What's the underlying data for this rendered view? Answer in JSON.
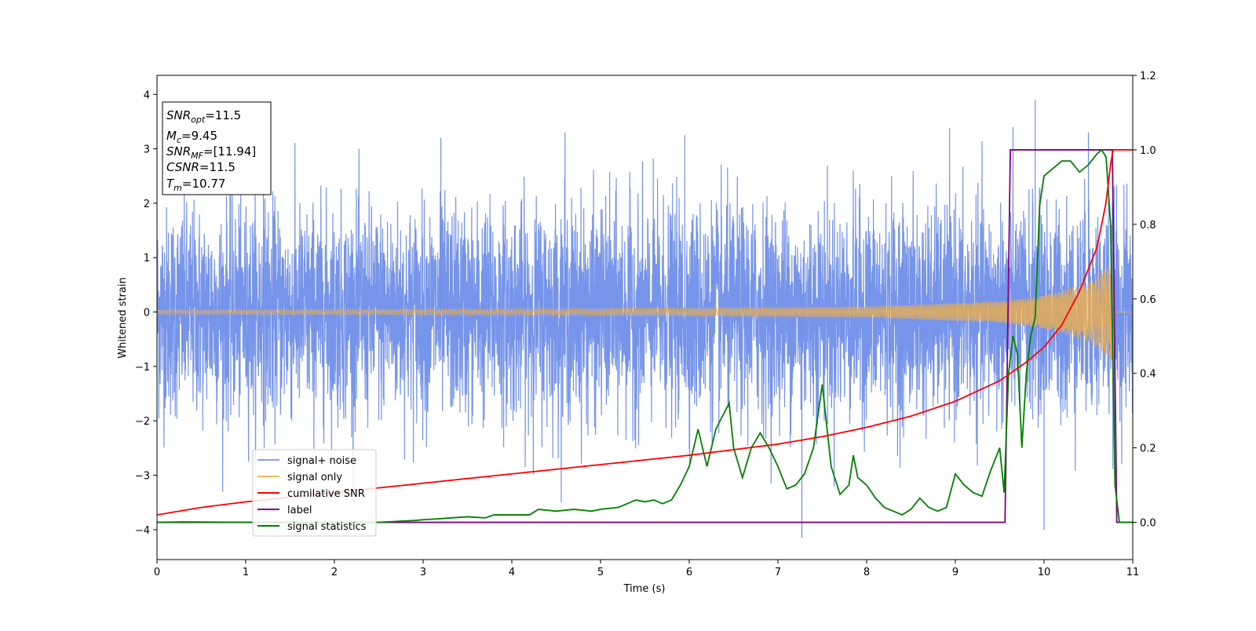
{
  "chart_data": {
    "type": "line",
    "xlabel": "Time (s)",
    "ylabel": "Whitened strain",
    "xlim": [
      0,
      11
    ],
    "ylim_left": [
      -4.55,
      4.35
    ],
    "ylim_right": [
      -0.1,
      1.2
    ],
    "x_ticks": [
      0,
      1,
      2,
      3,
      4,
      5,
      6,
      7,
      8,
      9,
      10,
      11
    ],
    "y_ticks_left": [
      -4,
      -3,
      -2,
      -1,
      0,
      1,
      2,
      3,
      4
    ],
    "y_ticks_right": [
      0.0,
      0.2,
      0.4,
      0.6,
      0.8,
      1.0,
      1.2
    ],
    "grid": false,
    "legend_position": "lower-left",
    "annotation": {
      "lines": [
        {
          "sym": "SNR",
          "sub": "opt",
          "val": "=11.5"
        },
        {
          "sym": "M",
          "sub": "c",
          "val": "=9.45"
        },
        {
          "sym": "SNR",
          "sub": "MF",
          "val": "=[11.94]"
        },
        {
          "sym": "CSNR",
          "sub": "",
          "val": "=11.5"
        },
        {
          "sym": "T",
          "sub": "m",
          "val": "=10.77"
        }
      ]
    },
    "series": [
      {
        "name": "signal+ noise",
        "axis": "left",
        "color": "#6f8ee8",
        "style": "noise",
        "sigma": 1.0,
        "x_range": [
          0,
          11
        ],
        "peaks_x": [
          1.2,
          3.2,
          4.6,
          5.95,
          9.9,
          10.0,
          10.5
        ],
        "peaks_y": [
          3.4,
          3.2,
          3.3,
          3.25,
          3.9,
          -4.0,
          3.3
        ],
        "min_point": [
          7.27,
          -4.15
        ]
      },
      {
        "name": "signal only",
        "axis": "left",
        "color": "#f5b041",
        "style": "chirp",
        "t_merger": 10.77,
        "x_range": [
          0,
          11
        ],
        "amp_points_x": [
          0,
          5,
          8,
          9.5,
          10.0,
          10.5,
          10.77,
          10.8,
          11
        ],
        "amp_points_y": [
          0.04,
          0.06,
          0.1,
          0.2,
          0.3,
          0.55,
          0.9,
          0.0,
          0.0
        ]
      },
      {
        "name": "cumilative SNR",
        "axis": "right",
        "color": "#ff0000",
        "x": [
          0,
          0.5,
          1,
          2,
          3,
          4,
          5,
          6,
          6.5,
          7,
          7.5,
          8,
          8.5,
          9,
          9.5,
          9.8,
          10.0,
          10.2,
          10.4,
          10.6,
          10.7,
          10.77,
          10.8,
          11
        ],
        "y": [
          0.02,
          0.04,
          0.055,
          0.08,
          0.105,
          0.13,
          0.155,
          0.18,
          0.195,
          0.21,
          0.23,
          0.255,
          0.285,
          0.325,
          0.38,
          0.43,
          0.47,
          0.53,
          0.62,
          0.74,
          0.86,
          1.0,
          1.0,
          1.0
        ]
      },
      {
        "name": "label",
        "axis": "right",
        "color": "#800080",
        "x": [
          0,
          9.56,
          9.62,
          10.77,
          10.82,
          11
        ],
        "y": [
          0,
          0,
          1,
          1,
          0,
          0
        ]
      },
      {
        "name": "signal statistics",
        "axis": "right",
        "color": "#008000",
        "x": [
          0,
          0.3,
          1,
          2,
          2.5,
          2.9,
          3.0,
          3.2,
          3.5,
          3.7,
          3.8,
          4.0,
          4.2,
          4.3,
          4.5,
          4.7,
          4.9,
          5.0,
          5.2,
          5.4,
          5.5,
          5.6,
          5.7,
          5.8,
          5.9,
          6.0,
          6.1,
          6.15,
          6.2,
          6.25,
          6.3,
          6.45,
          6.5,
          6.6,
          6.7,
          6.8,
          6.9,
          7.0,
          7.1,
          7.2,
          7.3,
          7.4,
          7.5,
          7.6,
          7.7,
          7.8,
          7.85,
          7.9,
          8.0,
          8.1,
          8.2,
          8.3,
          8.4,
          8.5,
          8.6,
          8.7,
          8.8,
          8.9,
          9.0,
          9.1,
          9.2,
          9.3,
          9.4,
          9.5,
          9.55,
          9.6,
          9.65,
          9.7,
          9.75,
          9.8,
          9.85,
          9.9,
          9.95,
          10.0,
          10.1,
          10.2,
          10.3,
          10.4,
          10.5,
          10.6,
          10.65,
          10.7,
          10.75,
          10.8,
          10.85,
          11
        ],
        "y": [
          0.0,
          0.001,
          0.0,
          0.0,
          0.0,
          0.005,
          0.007,
          0.01,
          0.015,
          0.012,
          0.02,
          0.02,
          0.02,
          0.035,
          0.03,
          0.035,
          0.03,
          0.035,
          0.04,
          0.06,
          0.055,
          0.06,
          0.05,
          0.06,
          0.1,
          0.15,
          0.25,
          0.2,
          0.15,
          0.2,
          0.25,
          0.32,
          0.2,
          0.12,
          0.2,
          0.24,
          0.2,
          0.15,
          0.09,
          0.1,
          0.13,
          0.2,
          0.37,
          0.15,
          0.075,
          0.1,
          0.18,
          0.12,
          0.1,
          0.065,
          0.04,
          0.03,
          0.02,
          0.035,
          0.065,
          0.04,
          0.03,
          0.04,
          0.13,
          0.1,
          0.08,
          0.07,
          0.14,
          0.2,
          0.08,
          0.4,
          0.5,
          0.45,
          0.2,
          0.4,
          0.5,
          0.55,
          0.85,
          0.93,
          0.95,
          0.97,
          0.97,
          0.94,
          0.96,
          0.99,
          1.0,
          0.98,
          0.8,
          0.1,
          0.0,
          0.0
        ]
      }
    ]
  }
}
